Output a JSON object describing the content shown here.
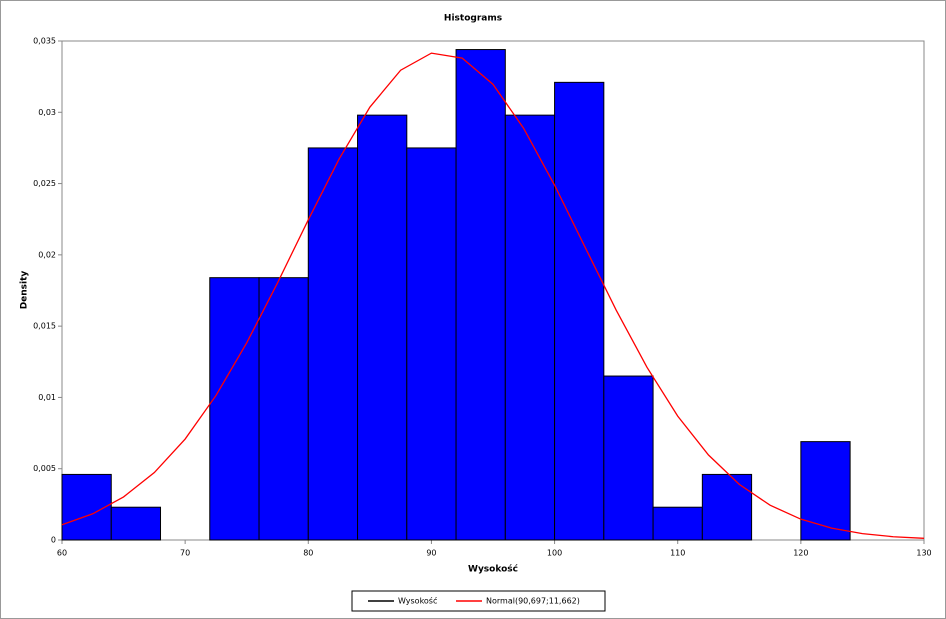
{
  "chart_data": {
    "type": "histogram",
    "title": "Histograms",
    "xlabel": "Wysokość",
    "ylabel": "Density",
    "name": "Wysokość",
    "color": "#0000ff",
    "edgecolor": "#000000",
    "bins": [
      60,
      64,
      68,
      72,
      76,
      80,
      84,
      88,
      92,
      96,
      100,
      104,
      108,
      112,
      116,
      120,
      124
    ],
    "values": [
      0.0046,
      0.0023,
      0,
      0.0184,
      0.0184,
      0.0275,
      0.0298,
      0.0275,
      0.0344,
      0.0298,
      0.0321,
      0.0115,
      0.0023,
      0.0046,
      0,
      0.0069
    ],
    "line": {
      "name": "Normal(90,697;11,662)",
      "color": "#ff0000",
      "x": [
        60,
        62.5,
        65,
        67.5,
        70,
        72.5,
        75,
        77.5,
        80,
        82.5,
        85,
        87.5,
        90,
        92.5,
        95,
        97.5,
        100,
        102.5,
        105,
        107.5,
        110,
        112.5,
        115,
        117.5,
        120,
        122.5,
        125,
        127.5,
        130
      ],
      "values": [
        0.00107,
        0.00184,
        0.00302,
        0.00473,
        0.00708,
        0.01013,
        0.01383,
        0.01803,
        0.02246,
        0.02672,
        0.03036,
        0.03295,
        0.03415,
        0.0338,
        0.03196,
        0.02886,
        0.02489,
        0.0205,
        0.01613,
        0.01212,
        0.00869,
        0.00596,
        0.0039,
        0.00244,
        0.00146,
        0.00083,
        0.00045,
        0.00023,
        0.00012
      ]
    },
    "xlim": [
      60,
      130
    ],
    "ylim": [
      0,
      0.035
    ],
    "xticks": [
      60,
      70,
      80,
      90,
      100,
      110,
      120,
      130
    ],
    "yticks": [
      0,
      {
        "value": 0.005,
        "label": "0,005"
      },
      {
        "value": 0.01,
        "label": "0,01"
      },
      {
        "value": 0.015,
        "label": "0,015"
      },
      {
        "value": 0.02,
        "label": "0,02"
      },
      {
        "value": 0.025,
        "label": "0,025"
      },
      {
        "value": 0.03,
        "label": "0,03"
      },
      {
        "value": 0.035,
        "label": "0,035"
      }
    ],
    "legend": "bottom"
  }
}
